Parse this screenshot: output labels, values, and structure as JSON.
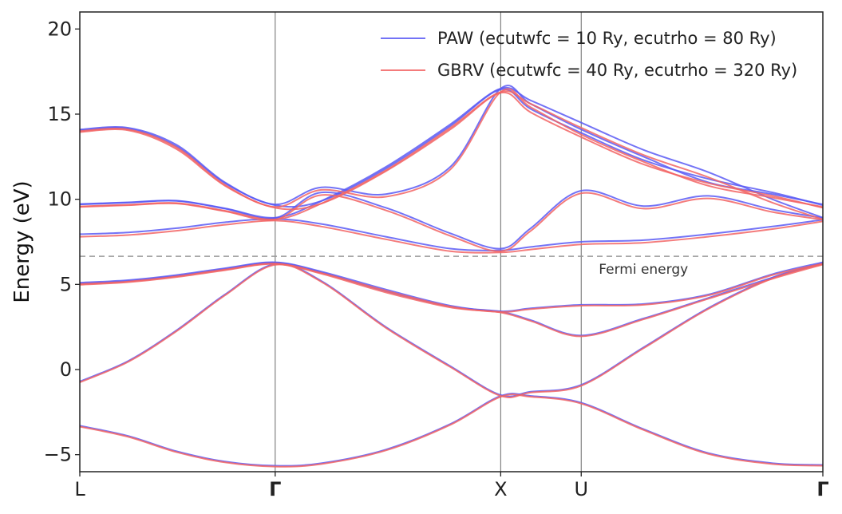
{
  "chart_data": {
    "type": "line",
    "ylabel": "Energy (eV)",
    "ylim": [
      -6,
      21
    ],
    "xlim": [
      0,
      4.613
    ],
    "y_ticks": [
      -5,
      0,
      5,
      10,
      15,
      20
    ],
    "x_ticks": [
      {
        "x": 0,
        "label": "L",
        "bold": false
      },
      {
        "x": 1.213,
        "label": "Γ",
        "bold": true
      },
      {
        "x": 2.613,
        "label": "X",
        "bold": false
      },
      {
        "x": 3.113,
        "label": "U",
        "bold": false
      },
      {
        "x": 4.613,
        "label": "Γ",
        "bold": true
      }
    ],
    "fermi_energy": 6.65,
    "fermi_label": "Fermi energy",
    "legend_position": "top-right",
    "colors": {
      "paw": "#5a5af5",
      "gbrv": "#f26464",
      "fermi": "#999999",
      "vline": "#777777"
    },
    "series": [
      {
        "name": "PAW (ecutwfc = 10 Ry, ecutrho = 80 Ry)",
        "color": "#5a5af5",
        "bands": [
          {
            "x": [
              0,
              0.3,
              0.6,
              0.9,
              1.213,
              1.5,
              1.9,
              2.3,
              2.613,
              2.8,
              3.113,
              3.5,
              3.9,
              4.3,
              4.613
            ],
            "y": [
              -3.3,
              -3.9,
              -4.8,
              -5.4,
              -5.65,
              -5.5,
              -4.7,
              -3.2,
              -1.55,
              -1.55,
              -1.95,
              -3.5,
              -4.9,
              -5.5,
              -5.6
            ]
          },
          {
            "x": [
              0,
              0.3,
              0.6,
              0.9,
              1.213,
              1.5,
              1.9,
              2.3,
              2.613,
              2.8,
              3.113,
              3.5,
              3.9,
              4.3,
              4.613
            ],
            "y": [
              -0.7,
              0.5,
              2.3,
              4.4,
              6.2,
              5.2,
              2.5,
              0.2,
              -1.5,
              -1.3,
              -0.9,
              1.3,
              3.6,
              5.4,
              6.25
            ]
          },
          {
            "x": [
              0,
              0.3,
              0.6,
              0.9,
              1.213,
              1.5,
              1.9,
              2.3,
              2.613,
              2.8,
              3.113,
              3.5,
              3.9,
              4.3,
              4.613
            ],
            "y": [
              5.05,
              5.2,
              5.5,
              5.9,
              6.28,
              5.7,
              4.6,
              3.7,
              3.4,
              2.9,
              2.0,
              3.0,
              4.2,
              5.4,
              6.25
            ]
          },
          {
            "x": [
              0,
              0.3,
              0.6,
              0.9,
              1.213,
              1.5,
              1.9,
              2.3,
              2.613,
              2.8,
              3.113,
              3.5,
              3.9,
              4.3,
              4.613
            ],
            "y": [
              5.1,
              5.25,
              5.55,
              5.95,
              6.3,
              5.75,
              4.7,
              3.75,
              3.42,
              3.6,
              3.8,
              3.85,
              4.4,
              5.6,
              6.3
            ]
          },
          {
            "x": [
              0,
              0.3,
              0.6,
              0.9,
              1.213,
              1.5,
              1.9,
              2.3,
              2.613,
              2.8,
              3.113,
              3.5,
              3.9,
              4.3,
              4.613
            ],
            "y": [
              7.95,
              8.05,
              8.3,
              8.65,
              8.85,
              8.55,
              7.8,
              7.1,
              7.0,
              7.2,
              7.5,
              7.6,
              7.95,
              8.4,
              8.8
            ]
          },
          {
            "x": [
              0,
              0.3,
              0.6,
              0.9,
              1.213,
              1.5,
              1.9,
              2.3,
              2.613,
              2.8,
              3.113,
              3.5,
              3.9,
              4.3,
              4.613
            ],
            "y": [
              9.7,
              9.8,
              9.9,
              9.45,
              8.9,
              10.4,
              9.5,
              8.0,
              7.1,
              8.3,
              10.5,
              9.6,
              10.2,
              9.4,
              8.9
            ]
          },
          {
            "x": [
              0,
              0.3,
              0.6,
              0.9,
              1.213,
              1.5,
              1.9,
              2.3,
              2.613,
              2.8,
              3.113,
              3.5,
              3.9,
              4.3,
              4.613
            ],
            "y": [
              9.72,
              9.82,
              9.92,
              9.47,
              8.92,
              9.9,
              11.9,
              14.4,
              16.5,
              15.8,
              14.5,
              12.9,
              11.6,
              10.0,
              8.92
            ]
          },
          {
            "x": [
              0,
              0.3,
              0.6,
              0.9,
              1.213,
              1.5,
              1.9,
              2.3,
              2.613,
              2.8,
              3.113,
              3.5,
              3.9,
              4.3,
              4.613
            ],
            "y": [
              14.1,
              14.2,
              13.2,
              11.0,
              9.7,
              10.7,
              10.3,
              11.9,
              16.5,
              15.6,
              14.1,
              12.5,
              11.0,
              10.3,
              9.7
            ]
          },
          {
            "x": [
              0,
              0.3,
              0.6,
              0.9,
              1.213,
              1.5,
              1.9,
              2.3,
              2.613,
              2.8,
              3.113,
              3.5,
              3.9,
              4.3,
              4.613
            ],
            "y": [
              14.05,
              14.15,
              13.1,
              10.95,
              9.65,
              9.9,
              11.8,
              14.3,
              16.45,
              15.3,
              13.9,
              12.3,
              11.2,
              10.4,
              9.65
            ]
          }
        ]
      },
      {
        "name": "GBRV (ecutwfc = 40 Ry, ecutrho = 320 Ry)",
        "color": "#f26464",
        "bands": [
          {
            "x": [
              0,
              0.3,
              0.6,
              0.9,
              1.213,
              1.5,
              1.9,
              2.3,
              2.613,
              2.8,
              3.113,
              3.5,
              3.9,
              4.3,
              4.613
            ],
            "y": [
              -3.35,
              -3.95,
              -4.85,
              -5.45,
              -5.7,
              -5.55,
              -4.75,
              -3.25,
              -1.6,
              -1.6,
              -2.0,
              -3.55,
              -4.95,
              -5.55,
              -5.65
            ]
          },
          {
            "x": [
              0,
              0.3,
              0.6,
              0.9,
              1.213,
              1.5,
              1.9,
              2.3,
              2.613,
              2.8,
              3.113,
              3.5,
              3.9,
              4.3,
              4.613
            ],
            "y": [
              -0.75,
              0.45,
              2.25,
              4.35,
              6.15,
              5.15,
              2.45,
              0.15,
              -1.55,
              -1.35,
              -0.95,
              1.25,
              3.55,
              5.35,
              6.2
            ]
          },
          {
            "x": [
              0,
              0.3,
              0.6,
              0.9,
              1.213,
              1.5,
              1.9,
              2.3,
              2.613,
              2.8,
              3.113,
              3.5,
              3.9,
              4.3,
              4.613
            ],
            "y": [
              4.98,
              5.13,
              5.43,
              5.83,
              6.2,
              5.63,
              4.53,
              3.65,
              3.35,
              2.85,
              1.95,
              2.95,
              4.15,
              5.33,
              6.17
            ]
          },
          {
            "x": [
              0,
              0.3,
              0.6,
              0.9,
              1.213,
              1.5,
              1.9,
              2.3,
              2.613,
              2.8,
              3.113,
              3.5,
              3.9,
              4.3,
              4.613
            ],
            "y": [
              5.02,
              5.17,
              5.47,
              5.87,
              6.22,
              5.67,
              4.63,
              3.7,
              3.38,
              3.55,
              3.75,
              3.8,
              4.35,
              5.55,
              6.22
            ]
          },
          {
            "x": [
              0,
              0.3,
              0.6,
              0.9,
              1.213,
              1.5,
              1.9,
              2.3,
              2.613,
              2.8,
              3.113,
              3.5,
              3.9,
              4.3,
              4.613
            ],
            "y": [
              7.8,
              7.9,
              8.15,
              8.5,
              8.75,
              8.4,
              7.65,
              6.95,
              6.88,
              7.05,
              7.35,
              7.45,
              7.8,
              8.25,
              8.7
            ]
          },
          {
            "x": [
              0,
              0.3,
              0.6,
              0.9,
              1.213,
              1.5,
              1.9,
              2.3,
              2.613,
              2.8,
              3.113,
              3.5,
              3.9,
              4.3,
              4.613
            ],
            "y": [
              9.55,
              9.65,
              9.75,
              9.3,
              8.8,
              10.25,
              9.35,
              7.85,
              6.95,
              8.15,
              10.35,
              9.45,
              10.05,
              9.25,
              8.8
            ]
          },
          {
            "x": [
              0,
              0.3,
              0.6,
              0.9,
              1.213,
              1.5,
              1.9,
              2.3,
              2.613,
              2.8,
              3.113,
              3.5,
              3.9,
              4.3,
              4.613
            ],
            "y": [
              9.58,
              9.68,
              9.78,
              9.33,
              8.82,
              9.75,
              11.7,
              14.2,
              16.3,
              15.6,
              14.2,
              12.6,
              11.3,
              9.8,
              8.82
            ]
          },
          {
            "x": [
              0,
              0.3,
              0.6,
              0.9,
              1.213,
              1.5,
              1.9,
              2.3,
              2.613,
              2.8,
              3.113,
              3.5,
              3.9,
              4.3,
              4.613
            ],
            "y": [
              14.0,
              14.1,
              13.05,
              10.85,
              9.55,
              10.55,
              10.15,
              11.75,
              16.3,
              15.4,
              13.8,
              12.2,
              10.8,
              10.1,
              9.55
            ]
          },
          {
            "x": [
              0,
              0.3,
              0.6,
              0.9,
              1.213,
              1.5,
              1.9,
              2.3,
              2.613,
              2.8,
              3.113,
              3.5,
              3.9,
              4.3,
              4.613
            ],
            "y": [
              13.95,
              14.05,
              12.95,
              10.8,
              9.5,
              9.75,
              11.65,
              14.1,
              16.25,
              15.1,
              13.65,
              12.05,
              10.95,
              10.2,
              9.5
            ]
          }
        ]
      }
    ]
  }
}
